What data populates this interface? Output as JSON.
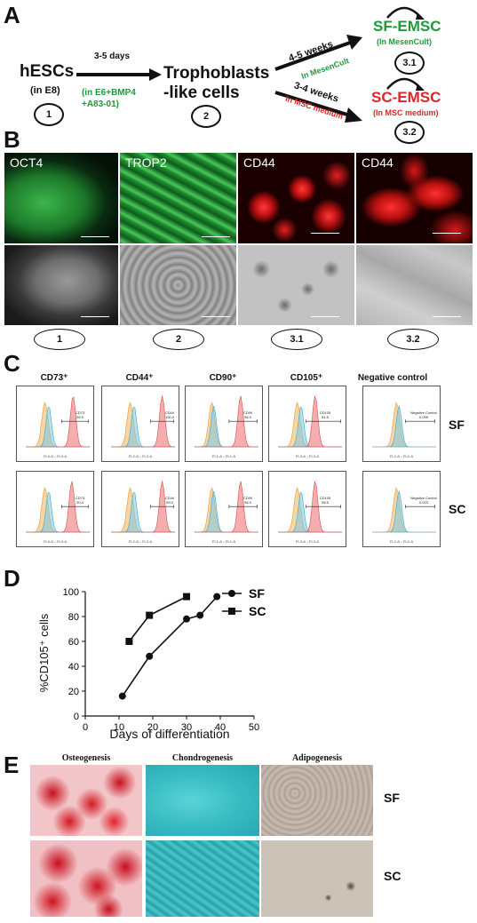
{
  "panel_a": {
    "letter": "A",
    "hesc_label": "hESCs",
    "hesc_sub": "(in E8)",
    "arrow1_top": "3-5 days",
    "arrow1_bottom": "(in E6+BMP4\n+A83-01)",
    "tropho_label": "Trophoblasts\n-like cells",
    "upper_time": "4-5 weeks",
    "upper_medium": "In MesenCult",
    "lower_time": "3-4 weeks",
    "lower_medium": "In MSC medium",
    "sf_title": "SF-EMSC",
    "sf_sub": "(In MesenCult)",
    "sc_title": "SC-EMSC",
    "sc_sub": "(In MSC medium)",
    "step1": "1",
    "step2": "2",
    "step31": "3.1",
    "step32": "3.2",
    "color_green": "#1e9a3c",
    "color_red": "#d9262b"
  },
  "panel_b": {
    "letter": "B",
    "stains": [
      "OCT4",
      "TROP2",
      "CD44",
      "CD44"
    ],
    "steps": [
      "1",
      "2",
      "3.1",
      "3.2"
    ]
  },
  "panel_c": {
    "letter": "C",
    "markers": [
      "CD73⁺",
      "CD44⁺",
      "CD90⁺",
      "CD105⁺",
      "Negative control"
    ],
    "row_labels": [
      "SF",
      "SC"
    ],
    "axis_labels": {
      "sf": [
        "FL4-A :: FL4-A",
        "FL2-A :: FL2-A",
        "FL1-A :: FL1-A",
        "FL3-A :: FL3-A",
        "FL2-A :: FL2-A"
      ],
      "sc": [
        "FL4-A :: FL4-A",
        "FL2-A :: FL2-A",
        "FL1-A :: FL1-A",
        "FL3-A :: FL3-A",
        "FL2-A :: FL2-A"
      ]
    },
    "gates": {
      "sf": [
        {
          "name": "CD73",
          "value": "99.9"
        },
        {
          "name": "CD44",
          "value": "100.0"
        },
        {
          "name": "CD90",
          "value": "96.9"
        },
        {
          "name": "CD105",
          "value": "81.5"
        },
        {
          "name": "Negative Control",
          "value": "0.095"
        }
      ],
      "sc": [
        {
          "name": "CD73",
          "value": "90.4"
        },
        {
          "name": "CD44",
          "value": "99.9"
        },
        {
          "name": "CD90",
          "value": "96.9"
        },
        {
          "name": "CD105",
          "value": "98.5"
        },
        {
          "name": "Negative Control",
          "value": "0.023"
        }
      ]
    },
    "y_ticks": [
      "1.5K",
      "1.2K",
      "900",
      "600",
      "300",
      "0"
    ],
    "x_ticks": [
      "10°",
      "10²",
      "10⁴",
      "10⁶"
    ]
  },
  "panel_d": {
    "letter": "D",
    "chart_data": {
      "type": "line",
      "xlabel": "Days of differentiation",
      "ylabel": "%CD105⁺ cells",
      "xlim": [
        0,
        50
      ],
      "ylim": [
        0,
        100
      ],
      "x_ticks": [
        "0",
        "10",
        "20",
        "30",
        "40",
        "50"
      ],
      "y_ticks": [
        "0",
        "20",
        "40",
        "60",
        "80",
        "100"
      ],
      "series": [
        {
          "name": "SF",
          "marker": "circle",
          "points": [
            [
              11,
              16
            ],
            [
              19,
              48
            ],
            [
              30,
              78
            ],
            [
              34,
              81
            ],
            [
              39,
              96
            ]
          ]
        },
        {
          "name": "SC",
          "marker": "square",
          "points": [
            [
              13,
              60
            ],
            [
              19,
              81
            ],
            [
              30,
              96
            ]
          ]
        }
      ]
    }
  },
  "panel_e": {
    "letter": "E",
    "columns": [
      "Osteogenesis",
      "Chondrogenesis",
      "Adipogenesis"
    ],
    "row_labels": [
      "SF",
      "SC"
    ]
  }
}
